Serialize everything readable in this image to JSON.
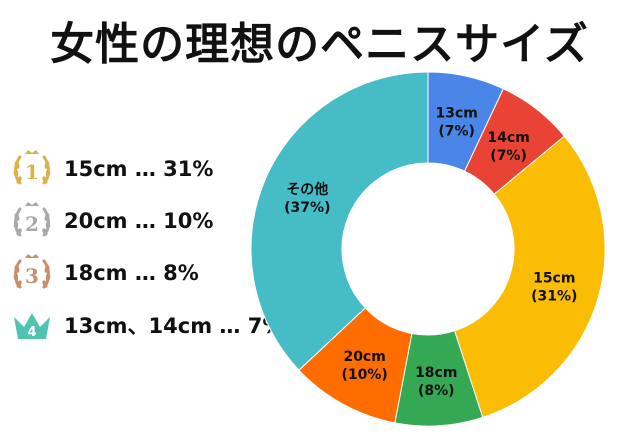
{
  "title": "女性の理想のペニスサイズ",
  "ranking": [
    {
      "rank": "1",
      "text": "15cm … 31%",
      "color": "#d9b24a"
    },
    {
      "rank": "2",
      "text": "20cm … 10%",
      "color": "#a9a9a9"
    },
    {
      "rank": "3",
      "text": "18cm … 8%",
      "color": "#c8906a"
    },
    {
      "rank": "4",
      "text": "13cm、14cm … 7%",
      "color": "#4fc3b0"
    }
  ],
  "chart_data": {
    "type": "pie",
    "donut": true,
    "categories": [
      "13cm",
      "14cm",
      "15cm",
      "18cm",
      "20cm",
      "その他"
    ],
    "values": [
      7,
      7,
      31,
      8,
      10,
      37
    ],
    "labels": [
      {
        "name": "13cm",
        "pct": "(7%)"
      },
      {
        "name": "14cm",
        "pct": "(7%)"
      },
      {
        "name": "15cm",
        "pct": "(31%)"
      },
      {
        "name": "18cm",
        "pct": "(8%)"
      },
      {
        "name": "20cm",
        "pct": "(10%)"
      },
      {
        "name": "その他",
        "pct": "(37%)"
      }
    ],
    "colors": [
      "#4a86e8",
      "#e84335",
      "#fbbc04",
      "#34a853",
      "#ff6d01",
      "#46bdc6"
    ]
  }
}
